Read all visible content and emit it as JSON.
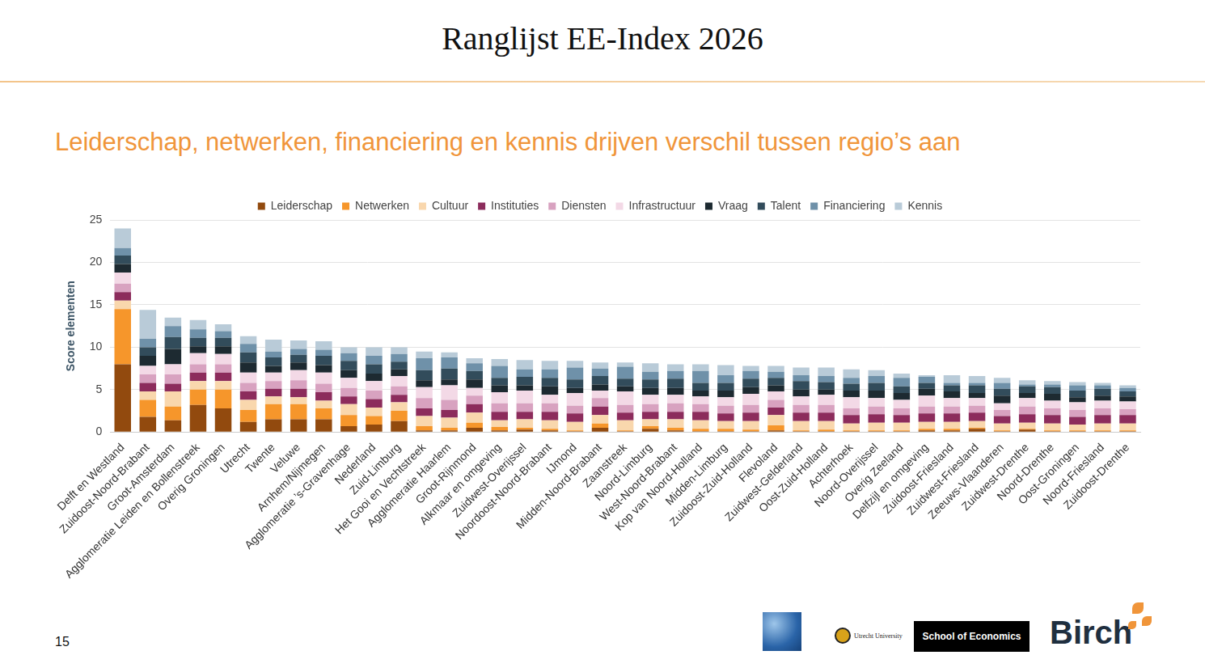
{
  "title": "Ranglijst EE-Index 2026",
  "subtitle": "Leiderschap, netwerken, financiering en kennis drijven verschil tussen regio’s aan",
  "page_number": "15",
  "logos": [
    "Utrecht University",
    "School of Economics",
    "Birch"
  ],
  "chart_data": {
    "type": "bar",
    "stacked": true,
    "grid": true,
    "legend": "top",
    "y_label": "Score elementen",
    "ylim": [
      0,
      25
    ],
    "yticks": [
      0,
      5,
      10,
      15,
      20,
      25
    ],
    "categories": [
      "Delft en Westland",
      "Zuidoost-Noord-Brabant",
      "Groot-Amsterdam",
      "Agglomeratie Leiden en Bollenstreek",
      "Overig Groningen",
      "Utrecht",
      "Twente",
      "Veluwe",
      "Arnhem/Nijmegen",
      "Agglomeratie ’s-Gravenhage",
      "Nederland",
      "Zuid-Limburg",
      "Het Gooi en Vechtstreek",
      "Agglomeratie Haarlem",
      "Groot-Rijnmond",
      "Alkmaar en omgeving",
      "Zuidwest-Overijssel",
      "Noordoost-Noord-Brabant",
      "IJmond",
      "Midden-Noord-Brabant",
      "Zaanstreek",
      "Noord-Limburg",
      "West-Noord-Brabant",
      "Kop van Noord-Holland",
      "Midden-Limburg",
      "Zuidoost-Zuid-Holland",
      "Flevoland",
      "Zuidwest-Gelderland",
      "Oost-Zuid-Holland",
      "Achterhoek",
      "Noord-Overijssel",
      "Overig Zeeland",
      "Delfzijl en omgeving",
      "Zuidoost-Friesland",
      "Zuidwest-Friesland",
      "Zeeuws-Vlaanderen",
      "Zuidwest-Drenthe",
      "Noord-Drenthe",
      "Oost-Groningen",
      "Noord-Friesland",
      "Zuidoost-Drenthe"
    ],
    "series": [
      {
        "name": "Leiderschap",
        "color": "#924a0e",
        "values": [
          8,
          1.8,
          1.4,
          3.2,
          2.8,
          1.2,
          1.5,
          1.5,
          1.5,
          0.7,
          0.9,
          1.3,
          0.2,
          0.2,
          0.5,
          0.2,
          0.3,
          0.2,
          0.1,
          0.5,
          0.1,
          0.4,
          0.2,
          0.1,
          0.1,
          0.1,
          0.2,
          0.1,
          0.1,
          0.1,
          0.1,
          0.1,
          0.2,
          0.2,
          0.4,
          0.1,
          0.3,
          0.1,
          0.1,
          0.1,
          0.1
        ]
      },
      {
        "name": "Netwerken",
        "color": "#f6962b",
        "values": [
          6.5,
          2,
          1.6,
          1.8,
          2.2,
          1.4,
          1.8,
          1.8,
          1.3,
          1.3,
          1,
          1.2,
          0.5,
          0.3,
          0.6,
          0.4,
          0.2,
          0.2,
          0.1,
          0.5,
          0.1,
          0.3,
          0.3,
          0.3,
          0.3,
          0.2,
          0.6,
          0.1,
          0.2,
          0.1,
          0.1,
          0.1,
          0.2,
          0.2,
          0.1,
          0.1,
          0.1,
          0.1,
          0.1,
          0.1,
          0.1
        ]
      },
      {
        "name": "Cultuur",
        "color": "#f9d7ad",
        "values": [
          1,
          1,
          1.8,
          1,
          1,
          1.2,
          0.9,
          0.8,
          0.9,
          1.3,
          1,
          1,
          1.2,
          1.2,
          1.2,
          0.8,
          1,
          1,
          1,
          1,
          1.2,
          0.8,
          1,
          1,
          0.9,
          1,
          1.2,
          1.1,
          1,
          0.8,
          0.9,
          0.9,
          0.8,
          0.8,
          0.8,
          0.8,
          0.7,
          0.8,
          0.7,
          0.8,
          0.8
        ]
      },
      {
        "name": "Instituties",
        "color": "#8c2c5c",
        "values": [
          1,
          1,
          0.9,
          1,
          1,
          1,
          0.9,
          1,
          1,
          0.9,
          1,
          0.9,
          0.9,
          0.9,
          1,
          1,
          0.9,
          1,
          1,
          1,
          0.9,
          0.9,
          0.9,
          1,
          0.9,
          1,
          0.9,
          1,
          1,
          1,
          1,
          0.9,
          1,
          1,
          1,
          0.9,
          1,
          1,
          0.9,
          1,
          1
        ]
      },
      {
        "name": "Diensten",
        "color": "#d8a2c0",
        "values": [
          1,
          1,
          1.1,
          1,
          1,
          1,
          0.9,
          1,
          1,
          1,
          1,
          1,
          1.2,
          1.2,
          1,
          1,
          1,
          1,
          0.9,
          1,
          0.9,
          0.9,
          1,
          0.9,
          0.9,
          0.9,
          0.9,
          0.9,
          0.9,
          0.8,
          0.9,
          0.8,
          0.8,
          0.8,
          0.8,
          0.7,
          0.9,
          0.8,
          0.8,
          0.8,
          0.7
        ]
      },
      {
        "name": "Infrastructuur",
        "color": "#f3d9e6",
        "values": [
          1.3,
          1,
          1.2,
          1.3,
          1.2,
          1.2,
          1,
          1.2,
          1.3,
          1.2,
          1.1,
          1.2,
          1.3,
          1.7,
          0.9,
          1.3,
          1.5,
          1,
          1.5,
          0.9,
          1.6,
          1.1,
          1,
          0.9,
          1,
          1.3,
          1,
          1,
          1.2,
          1.3,
          1,
          1,
          1.3,
          1,
          0.9,
          0.8,
          1,
          0.9,
          0.9,
          0.9,
          0.9
        ]
      },
      {
        "name": "Vraag",
        "color": "#1d2a31",
        "values": [
          1,
          1.2,
          1.8,
          0.8,
          0.9,
          1.2,
          0.8,
          0.9,
          0.9,
          0.9,
          0.9,
          0.8,
          0.8,
          0.7,
          1,
          0.8,
          0.6,
          1,
          0.6,
          0.7,
          0.6,
          0.8,
          0.8,
          0.7,
          0.8,
          0.8,
          0.7,
          0.8,
          0.6,
          0.8,
          0.9,
          0.8,
          0.8,
          0.8,
          0.6,
          0.9,
          0.6,
          0.8,
          0.6,
          0.6,
          0.6
        ]
      },
      {
        "name": "Talent",
        "color": "#324c5b",
        "values": [
          1,
          1,
          1.4,
          1,
          1,
          1.2,
          1,
          0.9,
          1.1,
          1.1,
          1.1,
          0.9,
          1.2,
          1.3,
          1,
          0.9,
          1,
          1,
          1,
          1,
          0.9,
          1,
          1.1,
          0.9,
          0.9,
          1,
          0.9,
          1,
          0.9,
          0.8,
          0.9,
          0.8,
          0.7,
          0.7,
          0.9,
          0.8,
          0.8,
          0.8,
          0.8,
          0.8,
          0.6
        ]
      },
      {
        "name": "Financiering",
        "color": "#6f91a9",
        "values": [
          0.9,
          1,
          1.3,
          1,
          0.8,
          1,
          0.7,
          0.7,
          0.7,
          0.9,
          1,
          0.9,
          1.4,
          1.3,
          0.9,
          1.4,
          0.9,
          1,
          1.4,
          0.9,
          1.4,
          0.9,
          0.9,
          1.4,
          0.9,
          0.9,
          0.7,
          0.7,
          0.7,
          0.7,
          0.8,
          1,
          0.7,
          0.3,
          0.3,
          0.7,
          0.2,
          0.3,
          0.6,
          0.4,
          0.4
        ]
      },
      {
        "name": "Kennis",
        "color": "#b9cbd8",
        "values": [
          2.3,
          3.4,
          1,
          1.1,
          0.8,
          0.9,
          1.4,
          1,
          1,
          0.7,
          1,
          0.8,
          0.8,
          0.6,
          0.6,
          0.8,
          1.1,
          1,
          0.8,
          0.7,
          0.5,
          1,
          0.8,
          0.8,
          1.2,
          0.6,
          0.7,
          0.9,
          1,
          1,
          0.7,
          0.5,
          0.2,
          0.9,
          0.8,
          0.6,
          0.5,
          0.4,
          0.4,
          0.3,
          0.3
        ]
      }
    ]
  }
}
